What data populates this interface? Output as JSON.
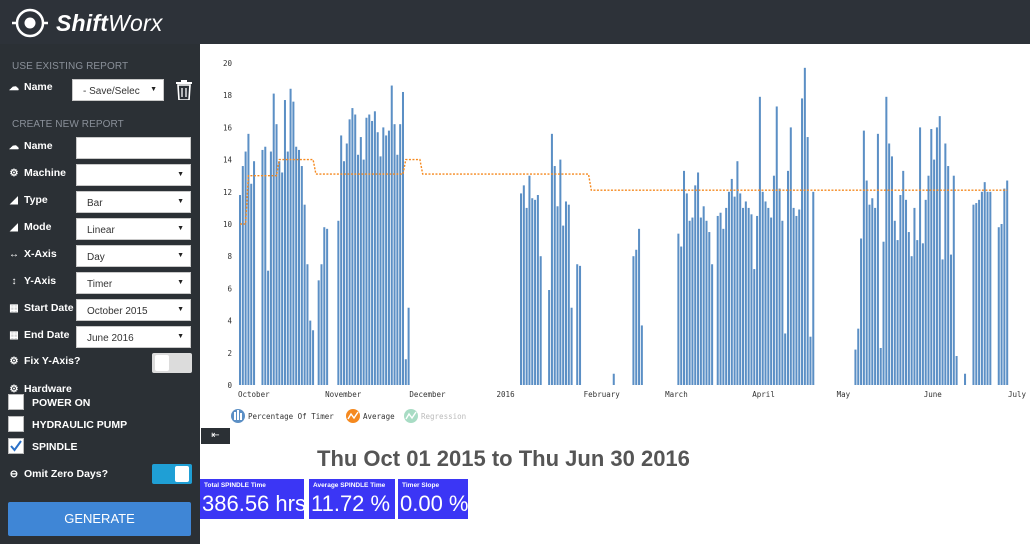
{
  "app": {
    "brand_bold": "Shift",
    "brand_rest": "Worx"
  },
  "sidebar": {
    "use_existing_title": "USE EXISTING REPORT",
    "existing_name_label": "Name",
    "existing_name_value": "- Save/Selec",
    "create_new_title": "CREATE NEW REPORT",
    "fields": {
      "name": {
        "label": "Name",
        "value": ""
      },
      "machine": {
        "label": "Machine",
        "value": ""
      },
      "type": {
        "label": "Type",
        "value": "Bar"
      },
      "mode": {
        "label": "Mode",
        "value": "Linear"
      },
      "x_axis": {
        "label": "X-Axis",
        "value": "Day"
      },
      "y_axis": {
        "label": "Y-Axis",
        "value": "Timer"
      },
      "start_date": {
        "label": "Start Date",
        "value": "October 2015"
      },
      "end_date": {
        "label": "End Date",
        "value": "June 2016"
      }
    },
    "fix_y_axis_label": "Fix Y-Axis?",
    "hardware_label": "Hardware",
    "hardware": [
      {
        "label": "POWER ON",
        "checked": false
      },
      {
        "label": "HYDRAULIC PUMP",
        "checked": false
      },
      {
        "label": "SPINDLE",
        "checked": true
      }
    ],
    "omit_zero_label": "Omit Zero Days?",
    "generate_label": "GENERATE",
    "collapse_icon": "sign-out-icon"
  },
  "summary": {
    "date_range": "Thu Oct 01 2015 to Thu Jun 30 2016",
    "stats": [
      {
        "label": "Total SPINDLE Time",
        "value": "386.56 hrs"
      },
      {
        "label": "Average SPINDLE Time",
        "value": "11.72 %"
      },
      {
        "label": "Timer Slope",
        "value": "0.00 %"
      }
    ]
  },
  "colors": {
    "bar": "#5b8fc5",
    "average": "#f5891f",
    "regression": "#a8dcc4",
    "stat_box": "#3b36f5",
    "sidebar": "#2b3035"
  },
  "chart_data": {
    "type": "bar",
    "x_type": "date",
    "x_range": [
      "2015-10-01",
      "2016-07-01"
    ],
    "ylim": [
      0,
      20
    ],
    "yticks": [
      0,
      2,
      4,
      6,
      8,
      10,
      12,
      14,
      16,
      18,
      20
    ],
    "xticks": [
      {
        "date": "2015-10-01",
        "label": "October"
      },
      {
        "date": "2015-11-01",
        "label": "November"
      },
      {
        "date": "2015-12-01",
        "label": "December"
      },
      {
        "date": "2016-01-01",
        "label": "2016"
      },
      {
        "date": "2016-02-01",
        "label": "February"
      },
      {
        "date": "2016-03-01",
        "label": "March"
      },
      {
        "date": "2016-04-01",
        "label": "April"
      },
      {
        "date": "2016-05-01",
        "label": "May"
      },
      {
        "date": "2016-06-01",
        "label": "June"
      },
      {
        "date": "2016-07-01",
        "label": "July"
      }
    ],
    "legend": [
      "Percentage Of Timer",
      "Average",
      "Regression"
    ],
    "series": [
      {
        "name": "Percentage Of Timer",
        "points": [
          [
            "2015-10-01",
            11.8
          ],
          [
            "2015-10-02",
            13.6
          ],
          [
            "2015-10-03",
            14.5
          ],
          [
            "2015-10-04",
            15.6
          ],
          [
            "2015-10-05",
            12.5
          ],
          [
            "2015-10-06",
            13.9
          ],
          [
            "2015-10-09",
            14.6
          ],
          [
            "2015-10-10",
            14.8
          ],
          [
            "2015-10-11",
            7.1
          ],
          [
            "2015-10-12",
            14.5
          ],
          [
            "2015-10-13",
            18.1
          ],
          [
            "2015-10-14",
            16.2
          ],
          [
            "2015-10-15",
            13.9
          ],
          [
            "2015-10-16",
            13.2
          ],
          [
            "2015-10-17",
            17.7
          ],
          [
            "2015-10-18",
            14.5
          ],
          [
            "2015-10-19",
            18.4
          ],
          [
            "2015-10-20",
            17.6
          ],
          [
            "2015-10-21",
            14.8
          ],
          [
            "2015-10-22",
            14.6
          ],
          [
            "2015-10-23",
            13.6
          ],
          [
            "2015-10-24",
            11.2
          ],
          [
            "2015-10-25",
            7.5
          ],
          [
            "2015-10-26",
            4.0
          ],
          [
            "2015-10-27",
            3.4
          ],
          [
            "2015-10-29",
            6.5
          ],
          [
            "2015-10-30",
            7.5
          ],
          [
            "2015-10-31",
            9.8
          ],
          [
            "2015-11-01",
            9.7
          ],
          [
            "2015-11-05",
            10.2
          ],
          [
            "2015-11-06",
            15.5
          ],
          [
            "2015-11-07",
            13.9
          ],
          [
            "2015-11-08",
            15.0
          ],
          [
            "2015-11-09",
            16.5
          ],
          [
            "2015-11-10",
            17.2
          ],
          [
            "2015-11-11",
            16.8
          ],
          [
            "2015-11-12",
            14.3
          ],
          [
            "2015-11-13",
            15.4
          ],
          [
            "2015-11-14",
            14.0
          ],
          [
            "2015-11-15",
            16.6
          ],
          [
            "2015-11-16",
            16.8
          ],
          [
            "2015-11-17",
            16.4
          ],
          [
            "2015-11-18",
            17.0
          ],
          [
            "2015-11-19",
            15.7
          ],
          [
            "2015-11-20",
            14.2
          ],
          [
            "2015-11-21",
            16.0
          ],
          [
            "2015-11-22",
            15.5
          ],
          [
            "2015-11-23",
            15.8
          ],
          [
            "2015-11-24",
            18.6
          ],
          [
            "2015-11-25",
            16.2
          ],
          [
            "2015-11-26",
            14.3
          ],
          [
            "2015-11-27",
            16.2
          ],
          [
            "2015-11-28",
            18.2
          ],
          [
            "2015-11-29",
            1.6
          ],
          [
            "2015-11-30",
            4.8
          ],
          [
            "2016-01-09",
            11.9
          ],
          [
            "2016-01-10",
            12.4
          ],
          [
            "2016-01-11",
            11.0
          ],
          [
            "2016-01-12",
            13.0
          ],
          [
            "2016-01-13",
            11.6
          ],
          [
            "2016-01-14",
            11.5
          ],
          [
            "2016-01-15",
            11.8
          ],
          [
            "2016-01-16",
            8.0
          ],
          [
            "2016-01-19",
            5.9
          ],
          [
            "2016-01-20",
            15.6
          ],
          [
            "2016-01-21",
            13.6
          ],
          [
            "2016-01-22",
            11.1
          ],
          [
            "2016-01-23",
            14.0
          ],
          [
            "2016-01-24",
            9.9
          ],
          [
            "2016-01-25",
            11.4
          ],
          [
            "2016-01-26",
            11.2
          ],
          [
            "2016-01-27",
            4.8
          ],
          [
            "2016-01-29",
            7.5
          ],
          [
            "2016-01-30",
            7.4
          ],
          [
            "2016-02-11",
            0.7
          ],
          [
            "2016-02-18",
            8.0
          ],
          [
            "2016-02-19",
            8.4
          ],
          [
            "2016-02-20",
            9.7
          ],
          [
            "2016-02-21",
            3.7
          ],
          [
            "2016-03-05",
            9.4
          ],
          [
            "2016-03-06",
            8.6
          ],
          [
            "2016-03-07",
            13.3
          ],
          [
            "2016-03-08",
            11.9
          ],
          [
            "2016-03-09",
            10.2
          ],
          [
            "2016-03-10",
            10.4
          ],
          [
            "2016-03-11",
            12.4
          ],
          [
            "2016-03-12",
            13.2
          ],
          [
            "2016-03-13",
            10.4
          ],
          [
            "2016-03-14",
            11.1
          ],
          [
            "2016-03-15",
            10.2
          ],
          [
            "2016-03-16",
            9.5
          ],
          [
            "2016-03-17",
            7.5
          ],
          [
            "2016-03-19",
            10.5
          ],
          [
            "2016-03-20",
            10.7
          ],
          [
            "2016-03-21",
            9.7
          ],
          [
            "2016-03-22",
            11.0
          ],
          [
            "2016-03-23",
            12.0
          ],
          [
            "2016-03-24",
            12.8
          ],
          [
            "2016-03-25",
            11.7
          ],
          [
            "2016-03-26",
            13.9
          ],
          [
            "2016-03-27",
            11.9
          ],
          [
            "2016-03-28",
            11.0
          ],
          [
            "2016-03-29",
            11.4
          ],
          [
            "2016-03-30",
            11.0
          ],
          [
            "2016-03-31",
            10.6
          ],
          [
            "2016-04-01",
            7.2
          ],
          [
            "2016-04-02",
            10.5
          ],
          [
            "2016-04-03",
            17.9
          ],
          [
            "2016-04-04",
            12.0
          ],
          [
            "2016-04-05",
            11.4
          ],
          [
            "2016-04-06",
            11.0
          ],
          [
            "2016-04-07",
            10.4
          ],
          [
            "2016-04-08",
            13.0
          ],
          [
            "2016-04-09",
            17.3
          ],
          [
            "2016-04-10",
            12.2
          ],
          [
            "2016-04-11",
            10.2
          ],
          [
            "2016-04-12",
            3.2
          ],
          [
            "2016-04-13",
            13.3
          ],
          [
            "2016-04-14",
            16.0
          ],
          [
            "2016-04-15",
            11.0
          ],
          [
            "2016-04-16",
            10.5
          ],
          [
            "2016-04-17",
            10.9
          ],
          [
            "2016-04-18",
            17.8
          ],
          [
            "2016-04-19",
            19.7
          ],
          [
            "2016-04-20",
            15.4
          ],
          [
            "2016-04-21",
            3.0
          ],
          [
            "2016-04-22",
            12.0
          ],
          [
            "2016-05-07",
            2.2
          ],
          [
            "2016-05-08",
            3.5
          ],
          [
            "2016-05-09",
            9.1
          ],
          [
            "2016-05-10",
            15.8
          ],
          [
            "2016-05-11",
            12.7
          ],
          [
            "2016-05-12",
            11.2
          ],
          [
            "2016-05-13",
            11.6
          ],
          [
            "2016-05-14",
            11.0
          ],
          [
            "2016-05-15",
            15.6
          ],
          [
            "2016-05-16",
            2.3
          ],
          [
            "2016-05-17",
            8.9
          ],
          [
            "2016-05-18",
            17.9
          ],
          [
            "2016-05-19",
            15.0
          ],
          [
            "2016-05-20",
            14.2
          ],
          [
            "2016-05-21",
            10.2
          ],
          [
            "2016-05-22",
            9.0
          ],
          [
            "2016-05-23",
            11.8
          ],
          [
            "2016-05-24",
            13.3
          ],
          [
            "2016-05-25",
            11.5
          ],
          [
            "2016-05-26",
            9.5
          ],
          [
            "2016-05-27",
            8.0
          ],
          [
            "2016-05-28",
            11.0
          ],
          [
            "2016-05-29",
            9.0
          ],
          [
            "2016-05-30",
            16.0
          ],
          [
            "2016-05-31",
            8.8
          ],
          [
            "2016-06-01",
            11.5
          ],
          [
            "2016-06-02",
            13.0
          ],
          [
            "2016-06-03",
            15.9
          ],
          [
            "2016-06-04",
            14.0
          ],
          [
            "2016-06-05",
            16.0
          ],
          [
            "2016-06-06",
            16.7
          ],
          [
            "2016-06-07",
            7.8
          ],
          [
            "2016-06-08",
            15.0
          ],
          [
            "2016-06-09",
            13.6
          ],
          [
            "2016-06-10",
            8.1
          ],
          [
            "2016-06-11",
            13.0
          ],
          [
            "2016-06-12",
            1.8
          ],
          [
            "2016-06-15",
            0.7
          ],
          [
            "2016-06-18",
            11.2
          ],
          [
            "2016-06-19",
            11.3
          ],
          [
            "2016-06-20",
            11.5
          ],
          [
            "2016-06-21",
            12.0
          ],
          [
            "2016-06-22",
            12.6
          ],
          [
            "2016-06-23",
            12.0
          ],
          [
            "2016-06-24",
            12.0
          ],
          [
            "2016-06-27",
            9.8
          ],
          [
            "2016-06-28",
            10.0
          ],
          [
            "2016-06-29",
            12.2
          ],
          [
            "2016-06-30",
            12.7
          ]
        ]
      },
      {
        "name": "Average",
        "points": [
          [
            "2015-10-01",
            10.0
          ],
          [
            "2015-10-03",
            10.0
          ],
          [
            "2015-10-04",
            13.0
          ],
          [
            "2015-10-14",
            13.0
          ],
          [
            "2015-10-15",
            14.0
          ],
          [
            "2015-10-27",
            14.0
          ],
          [
            "2015-10-28",
            13.1
          ],
          [
            "2015-11-28",
            13.1
          ],
          [
            "2015-11-29",
            14.0
          ],
          [
            "2015-12-04",
            14.0
          ],
          [
            "2015-12-05",
            13.1
          ],
          [
            "2016-02-02",
            13.1
          ],
          [
            "2016-02-03",
            12.1
          ],
          [
            "2016-06-30",
            12.1
          ]
        ]
      }
    ]
  }
}
